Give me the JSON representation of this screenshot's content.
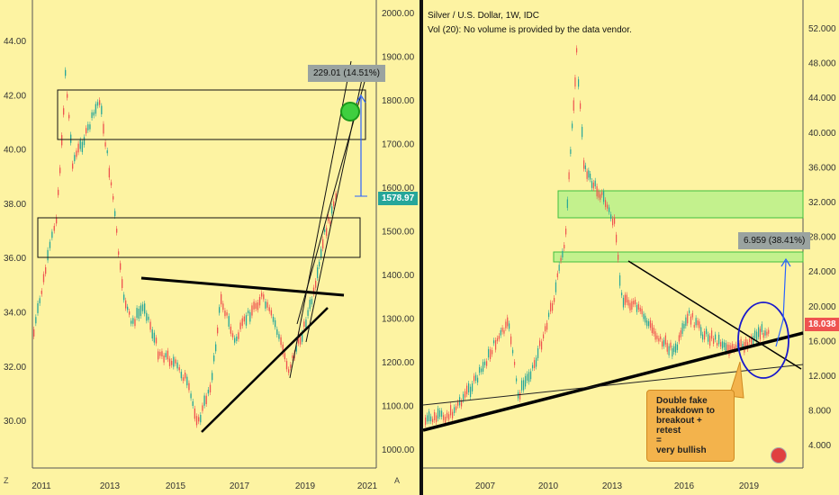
{
  "left_chart": {
    "price_axis": [
      "44.00",
      "42.00",
      "40.00",
      "38.00",
      "36.00",
      "34.00",
      "32.00",
      "30.00"
    ],
    "secondary_axis": [
      "2000.00",
      "1900.00",
      "1800.00",
      "1700.00",
      "1600.00",
      "1500.00",
      "1400.00",
      "1300.00",
      "1200.00",
      "1100.00",
      "1000.00"
    ],
    "time_axis": [
      "2011",
      "2013",
      "2015",
      "2017",
      "2019",
      "2021"
    ],
    "price_label": "1578.97",
    "price_label_color": "#26a69a",
    "measure_label": "229.01 (14.51%)",
    "zoom_icon_label": "Z",
    "auto_label": "A"
  },
  "right_chart": {
    "title": "Silver / U.S. Dollar, 1W, IDC",
    "volume_note": "Vol (20): No volume is provided by the data vendor.",
    "price_axis": [
      "52.000",
      "48.000",
      "44.000",
      "40.000",
      "36.000",
      "32.000",
      "28.000",
      "24.000",
      "20.000",
      "16.000",
      "12.000",
      "8.000",
      "4.000"
    ],
    "time_axis": [
      "2007",
      "2010",
      "2013",
      "2016",
      "2019"
    ],
    "price_label": "18.038",
    "price_label_color": "#ef5350",
    "measure_label": "6.959 (38.41%)",
    "note_lines": [
      "Double fake",
      "breakdown to",
      "breakout + retest",
      "=",
      "very bullish"
    ],
    "flag_icon": "us-flag-icon"
  },
  "colors": {
    "background": "#fdf3a2",
    "zone_green": "#b8f08a",
    "trend": "#000000",
    "arrow": "#2962ff",
    "circle": "#1a1acc",
    "note": "#f3b34c"
  }
}
